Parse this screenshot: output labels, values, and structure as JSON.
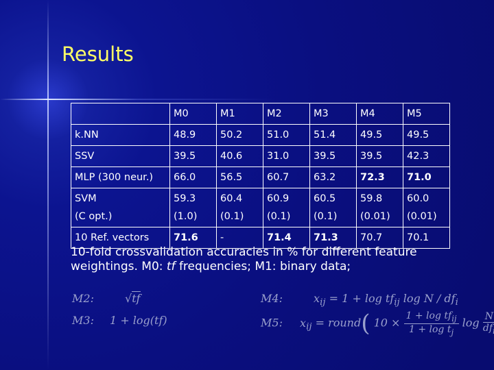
{
  "title": "Results",
  "table": {
    "header": [
      "M0",
      "M1",
      "M2",
      "M3",
      "M4",
      "M5"
    ],
    "rows": [
      {
        "label": [
          "k.NN"
        ],
        "cells": [
          [
            "48.9"
          ],
          [
            "50.2"
          ],
          [
            "51.0"
          ],
          [
            "51.4"
          ],
          [
            "49.5"
          ],
          [
            "49.5"
          ]
        ]
      },
      {
        "label": [
          "SSV"
        ],
        "cells": [
          [
            "39.5"
          ],
          [
            "40.6"
          ],
          [
            "31.0"
          ],
          [
            "39.5"
          ],
          [
            "39.5"
          ],
          [
            "42.3"
          ]
        ]
      },
      {
        "label": [
          "MLP (300 neur.)"
        ],
        "cells": [
          [
            "66.0"
          ],
          [
            "56.5"
          ],
          [
            "60.7"
          ],
          [
            "63.2"
          ],
          [
            "72.3"
          ],
          [
            "71.0"
          ]
        ]
      },
      {
        "label": [
          "SVM",
          "(C opt.)"
        ],
        "cells": [
          [
            "59.3",
            "(1.0)"
          ],
          [
            "60.4",
            "(0.1)"
          ],
          [
            "60.9",
            "(0.1)"
          ],
          [
            "60.5",
            "(0.1)"
          ],
          [
            "59.8",
            "(0.01)"
          ],
          [
            "60.0",
            "(0.01)"
          ]
        ]
      },
      {
        "label": [
          "10 Ref. vectors"
        ],
        "cells": [
          [
            "71.6"
          ],
          [
            "-"
          ],
          [
            "71.4"
          ],
          [
            "71.3"
          ],
          [
            "70.7"
          ],
          [
            "70.1"
          ]
        ]
      }
    ]
  },
  "caption": [
    "10-fold crossvalidation accuracies in % for different feature weightings. M0: ",
    "tf",
    " frequencies; M1: binary data;"
  ],
  "formulas": {
    "m2": [
      "M2:",
      "√",
      "tf"
    ],
    "m3": [
      "M3:",
      "1 + log(tf)"
    ],
    "m4": [
      "M4:",
      "x",
      "ij",
      "= 1 + log tf",
      "ij",
      "log N / df",
      "i"
    ],
    "m5": [
      "M5:",
      "x",
      "ij",
      "= round",
      "10 ×",
      "1 + log tf",
      "ij",
      "1 + log t",
      "j",
      "log",
      "N",
      "df",
      "i"
    ]
  }
}
